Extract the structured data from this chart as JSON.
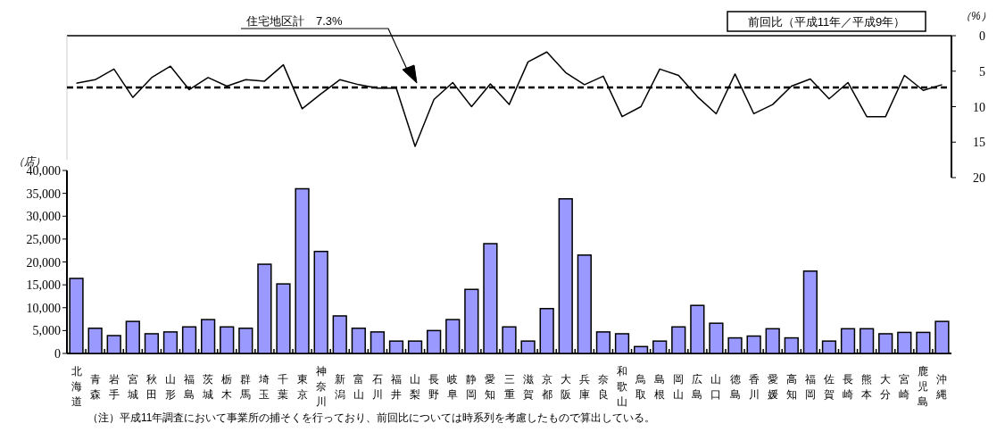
{
  "chart_data": [
    {
      "type": "line",
      "title": "前回比（平成11年／平成9年）",
      "ylabel": "（%）",
      "categories": [
        "北海道",
        "青森",
        "岩手",
        "宮城",
        "秋田",
        "山形",
        "福島",
        "茨城",
        "栃木",
        "群馬",
        "埼玉",
        "千葉",
        "東京",
        "神奈川",
        "新潟",
        "富山",
        "石川",
        "福井",
        "山梨",
        "長野",
        "岐阜",
        "静岡",
        "愛知",
        "三重",
        "滋賀",
        "京都",
        "大阪",
        "兵庫",
        "奈良",
        "和歌山",
        "鳥取",
        "島根",
        "岡山",
        "広島",
        "山口",
        "徳島",
        "香川",
        "愛媛",
        "高知",
        "福岡",
        "佐賀",
        "長崎",
        "熊本",
        "大分",
        "宮崎",
        "鹿児島",
        "沖縄"
      ],
      "ylim": [
        20,
        0
      ],
      "yticks": [
        0,
        5,
        10,
        15,
        20
      ],
      "tick_labels": "y",
      "series": [
        {
          "color": "#000000",
          "values": [
            6.7,
            6.2,
            4.7,
            8.7,
            5.9,
            4.3,
            7.6,
            5.9,
            7.1,
            6.2,
            6.4,
            4.1,
            10.3,
            8.2,
            6.2,
            6.9,
            7.4,
            7.4,
            15.6,
            9.0,
            6.6,
            10.0,
            6.8,
            9.7,
            3.7,
            2.3,
            5.2,
            6.9,
            5.7,
            11.4,
            10.0,
            4.7,
            5.6,
            8.6,
            11.0,
            5.4,
            11.0,
            9.7,
            7.1,
            6.1,
            8.9,
            6.6,
            11.4,
            11.4,
            5.6,
            7.7,
            6.9
          ]
        }
      ],
      "ref_lines": [
        {
          "axis": "y",
          "value": 7.3,
          "label": "住宅地区計　7.3%",
          "color": "#000000",
          "line_style": "dashed"
        }
      ],
      "line_style": "solid",
      "marker": "none"
    },
    {
      "type": "bar",
      "ylabel": "（店）",
      "categories": [
        "北海道",
        "青森",
        "岩手",
        "宮城",
        "秋田",
        "山形",
        "福島",
        "茨城",
        "栃木",
        "群馬",
        "埼玉",
        "千葉",
        "東京",
        "神奈川",
        "新潟",
        "富山",
        "石川",
        "福井",
        "山梨",
        "長野",
        "岐阜",
        "静岡",
        "愛知",
        "三重",
        "滋賀",
        "京都",
        "大阪",
        "兵庫",
        "奈良",
        "和歌山",
        "鳥取",
        "島根",
        "岡山",
        "広島",
        "山口",
        "徳島",
        "香川",
        "愛媛",
        "高知",
        "福岡",
        "佐賀",
        "長崎",
        "熊本",
        "大分",
        "宮崎",
        "鹿児島",
        "沖縄"
      ],
      "ylim": [
        0,
        40000
      ],
      "yticks": [
        0,
        {
          "value": 5000,
          "label": "5,000"
        },
        {
          "value": 10000,
          "label": "10,000"
        },
        {
          "value": 15000,
          "label": "15,000"
        },
        {
          "value": 20000,
          "label": "20,000"
        },
        {
          "value": 25000,
          "label": "25,000"
        },
        {
          "value": 30000,
          "label": "30,000"
        },
        {
          "value": 35000,
          "label": "35,000"
        },
        {
          "value": 40000,
          "label": "40,000"
        }
      ],
      "series": [
        {
          "color": "#9999ff",
          "values": [
            16400,
            5500,
            3900,
            7000,
            4300,
            4700,
            5800,
            7400,
            5800,
            5500,
            19500,
            15200,
            36000,
            22300,
            8200,
            5500,
            4700,
            2700,
            2700,
            5000,
            7400,
            14000,
            24000,
            5800,
            2700,
            9800,
            33800,
            21500,
            4700,
            4300,
            1500,
            2700,
            5800,
            10500,
            6600,
            3400,
            3800,
            5400,
            3400,
            18000,
            2700,
            5400,
            5400,
            4300,
            4600,
            4600,
            7000
          ]
        }
      ],
      "annotations": [
        "（注）平成11年調査において事業所の捕そくを行っており、前回比については時系列を考慮したもので算出している。"
      ]
    }
  ]
}
